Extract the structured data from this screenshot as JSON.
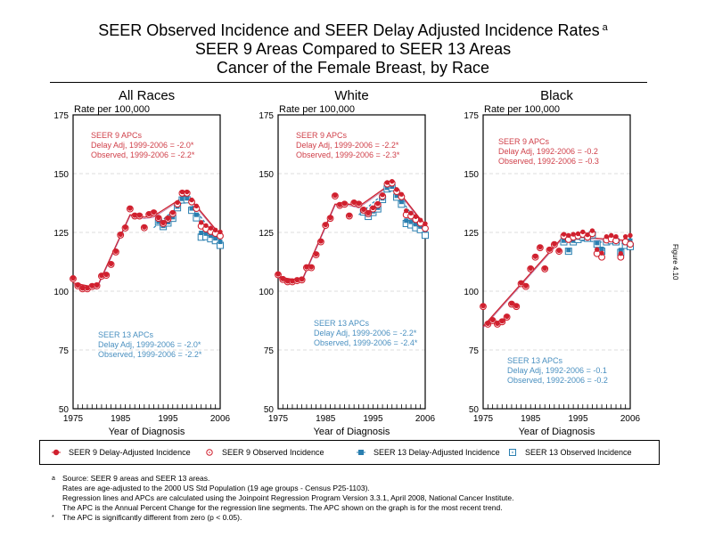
{
  "title": {
    "line1": "SEER Observed Incidence and SEER Delay Adjusted Incidence Rates",
    "superscript": "a",
    "line2": "SEER 9 Areas Compared to SEER 13 Areas",
    "line3": "Cancer of the Female Breast, by Race"
  },
  "figure_label": "Figure 4.10",
  "legend": [
    {
      "name": "SEER 9 Delay-Adjusted Incidence",
      "marker": "filled-circle",
      "color": "#d0202e"
    },
    {
      "name": "SEER 9 Observed Incidence",
      "marker": "open-circle",
      "color": "#d0202e"
    },
    {
      "name": "SEER 13 Delay-Adjusted Incidence",
      "marker": "filled-square",
      "color": "#2a7fb0"
    },
    {
      "name": "SEER 13 Observed Incidence",
      "marker": "open-square",
      "color": "#2a7fb0"
    }
  ],
  "footnotes": [
    {
      "mark": "a",
      "lines": [
        "Source: SEER 9 areas and SEER 13 areas.",
        "Rates are age-adjusted to the 2000 US Std Population (19 age groups - Census P25-1103).",
        "Regression lines and APCs are calculated using the Joinpoint Regression Program Version 3.3.1, April 2008, National Cancer Institute.",
        "The APC is the Annual Percent Change for the regression line segments. The APC shown on the graph is for the most recent trend."
      ]
    },
    {
      "mark": "*",
      "lines": [
        "The APC is significantly different from zero (p < 0.05)."
      ]
    }
  ],
  "colors": {
    "seer9": "#d0202e",
    "seer13": "#2a7fb0",
    "seer9_text": "#d0404a",
    "seer13_text": "#4a90c0"
  },
  "chart_data": [
    {
      "type": "scatter",
      "title": "All Races",
      "xlabel": "Year of Diagnosis",
      "ylabel": "Rate per 100,000",
      "xlim": [
        1975,
        2006
      ],
      "ylim": [
        50,
        175
      ],
      "xticks": [
        1975,
        1985,
        1995,
        2006
      ],
      "yticks": [
        50,
        75,
        100,
        125,
        150,
        175
      ],
      "grid": "horizontal-dashed",
      "seer9_apc": {
        "heading": "SEER 9 APCs",
        "delay": "Delay Adj, 1999-2006 = -2.0*",
        "observed": "Observed, 1999-2006 = -2.2*"
      },
      "seer13_apc": {
        "heading": "SEER 13 APCs",
        "delay": "Delay Adj, 1999-2006 = -2.0*",
        "observed": "Observed, 1999-2006 = -2.2*"
      },
      "x": [
        1975,
        1976,
        1977,
        1978,
        1979,
        1980,
        1981,
        1982,
        1983,
        1984,
        1985,
        1986,
        1987,
        1988,
        1989,
        1990,
        1991,
        1992,
        1993,
        1994,
        1995,
        1996,
        1997,
        1998,
        1999,
        2000,
        2001,
        2002,
        2003,
        2004,
        2005,
        2006
      ],
      "series": [
        {
          "name": "SEER 9 Delay-Adjusted Incidence",
          "values": [
            105.3,
            102.3,
            101.0,
            101.0,
            102.0,
            102.3,
            106.4,
            106.8,
            111.4,
            116.7,
            123.9,
            126.9,
            135.0,
            132.0,
            132.0,
            127.0,
            132.6,
            133.3,
            131.0,
            128.8,
            130.7,
            133.2,
            137.5,
            142.0,
            142.0,
            138.6,
            136.0,
            129.0,
            127.7,
            126.6,
            125.8,
            125.0
          ]
        },
        {
          "name": "SEER 9 Observed Incidence",
          "values": [
            105.3,
            102.3,
            101.0,
            101.0,
            102.0,
            102.3,
            106.4,
            106.8,
            111.4,
            116.7,
            123.9,
            126.9,
            135.0,
            132.0,
            132.0,
            127.0,
            132.6,
            133.3,
            131.0,
            128.8,
            130.7,
            133.0,
            137.1,
            141.7,
            141.7,
            138.0,
            135.2,
            127.7,
            126.5,
            125.4,
            124.6,
            123.5
          ]
        },
        {
          "name": "SEER 13 Delay-Adjusted Incidence",
          "values": [
            null,
            null,
            null,
            null,
            null,
            null,
            null,
            null,
            null,
            null,
            null,
            null,
            null,
            null,
            null,
            null,
            null,
            null,
            129.5,
            127.8,
            129.4,
            131.5,
            136.0,
            139.3,
            139.5,
            135.2,
            132.5,
            124.8,
            124.5,
            123.6,
            122.5,
            121.0
          ]
        },
        {
          "name": "SEER 13 Observed Incidence",
          "values": [
            null,
            null,
            null,
            null,
            null,
            null,
            null,
            null,
            null,
            null,
            null,
            null,
            null,
            null,
            null,
            null,
            null,
            null,
            129.4,
            127.5,
            129.0,
            131.0,
            135.5,
            138.8,
            138.9,
            134.4,
            131.2,
            123.0,
            123.2,
            122.3,
            121.5,
            119.5
          ]
        }
      ],
      "joinpoint_seer9": [
        [
          1975,
          103.5
        ],
        [
          1980,
          101.5
        ],
        [
          1987,
          132.5
        ],
        [
          1990,
          131.5
        ],
        [
          1992,
          132.0
        ],
        [
          1999,
          141.0
        ],
        [
          2006,
          124.0
        ]
      ],
      "joinpoint_seer13": [
        [
          1992,
          127.0
        ],
        [
          1999,
          139.5
        ],
        [
          2006,
          120.5
        ]
      ]
    },
    {
      "type": "scatter",
      "title": "White",
      "xlabel": "Year of Diagnosis",
      "ylabel": "Rate per 100,000",
      "xlim": [
        1975,
        2006
      ],
      "ylim": [
        50,
        175
      ],
      "xticks": [
        1975,
        1985,
        1995,
        2006
      ],
      "yticks": [
        50,
        75,
        100,
        125,
        150,
        175
      ],
      "grid": "horizontal-dashed",
      "seer9_apc": {
        "heading": "SEER 9 APCs",
        "delay": "Delay Adj, 1999-2006 = -2.2*",
        "observed": "Observed, 1999-2006 = -2.3*"
      },
      "seer13_apc": {
        "heading": "SEER 13 APCs",
        "delay": "Delay Adj, 1999-2006 = -2.2*",
        "observed": "Observed, 1999-2006 = -2.4*"
      },
      "x": [
        1975,
        1976,
        1977,
        1978,
        1979,
        1980,
        1981,
        1982,
        1983,
        1984,
        1985,
        1986,
        1987,
        1988,
        1989,
        1990,
        1991,
        1992,
        1993,
        1994,
        1995,
        1996,
        1997,
        1998,
        1999,
        2000,
        2001,
        2002,
        2003,
        2004,
        2005,
        2006
      ],
      "series": [
        {
          "name": "SEER 9 Delay-Adjusted Incidence",
          "values": [
            107.0,
            105.0,
            104.0,
            104.0,
            104.5,
            104.8,
            110.0,
            110.0,
            115.5,
            121.0,
            128.0,
            131.0,
            140.5,
            136.5,
            137.0,
            132.0,
            137.5,
            137.0,
            134.5,
            133.0,
            135.2,
            137.0,
            140.8,
            146.0,
            146.5,
            143.0,
            141.0,
            134.0,
            133.0,
            131.5,
            130.0,
            128.5
          ]
        },
        {
          "name": "SEER 9 Observed Incidence",
          "values": [
            107.0,
            105.0,
            104.0,
            104.0,
            104.5,
            104.8,
            110.0,
            110.0,
            115.5,
            121.0,
            128.0,
            131.0,
            140.5,
            136.5,
            137.0,
            132.0,
            137.5,
            137.0,
            134.5,
            133.0,
            135.0,
            136.8,
            140.4,
            145.6,
            146.0,
            142.4,
            140.2,
            132.5,
            132.0,
            130.5,
            129.0,
            126.7
          ]
        },
        {
          "name": "SEER 13 Delay-Adjusted Incidence",
          "values": [
            null,
            null,
            null,
            null,
            null,
            null,
            null,
            null,
            null,
            null,
            null,
            null,
            null,
            null,
            null,
            null,
            null,
            null,
            134.0,
            132.5,
            134.0,
            135.5,
            139.5,
            144.0,
            144.5,
            140.6,
            138.0,
            130.0,
            129.5,
            128.5,
            127.5,
            125.8
          ]
        },
        {
          "name": "SEER 13 Observed Incidence",
          "values": [
            null,
            null,
            null,
            null,
            null,
            null,
            null,
            null,
            null,
            null,
            null,
            null,
            null,
            null,
            null,
            null,
            null,
            null,
            133.7,
            131.8,
            133.5,
            135.0,
            139.0,
            143.5,
            144.0,
            140.0,
            137.0,
            128.8,
            128.2,
            127.0,
            126.2,
            123.8
          ]
        }
      ],
      "joinpoint_seer9": [
        [
          1975,
          106.0
        ],
        [
          1980,
          104.5
        ],
        [
          1987,
          137.0
        ],
        [
          1990,
          137.0
        ],
        [
          1992,
          136.0
        ],
        [
          1999,
          146.0
        ],
        [
          2006,
          128.0
        ]
      ],
      "joinpoint_seer13": [
        [
          1992,
          132.5
        ],
        [
          1999,
          144.5
        ],
        [
          2006,
          124.5
        ]
      ]
    },
    {
      "type": "scatter",
      "title": "Black",
      "xlabel": "Year of Diagnosis",
      "ylabel": "Rate per 100,000",
      "xlim": [
        1975,
        2006
      ],
      "ylim": [
        50,
        175
      ],
      "xticks": [
        1975,
        1985,
        1995,
        2006
      ],
      "yticks": [
        50,
        75,
        100,
        125,
        150,
        175
      ],
      "grid": "horizontal-dashed",
      "seer9_apc": {
        "heading": "SEER 9 APCs",
        "delay": "Delay Adj, 1992-2006 = -0.2",
        "observed": "Observed, 1992-2006 = -0.3"
      },
      "seer13_apc": {
        "heading": "SEER 13 APCs",
        "delay": "Delay Adj, 1992-2006 = -0.1",
        "observed": "Observed, 1992-2006 = -0.2"
      },
      "x": [
        1975,
        1976,
        1977,
        1978,
        1979,
        1980,
        1981,
        1982,
        1983,
        1984,
        1985,
        1986,
        1987,
        1988,
        1989,
        1990,
        1991,
        1992,
        1993,
        1994,
        1995,
        1996,
        1997,
        1998,
        1999,
        2000,
        2001,
        2002,
        2003,
        2004,
        2005,
        2006
      ],
      "series": [
        {
          "name": "SEER 9 Delay-Adjusted Incidence",
          "values": [
            93.5,
            86.0,
            87.5,
            86.0,
            87.0,
            89.0,
            94.5,
            93.5,
            103.2,
            102.0,
            109.5,
            114.5,
            118.5,
            109.5,
            117.5,
            119.8,
            117.0,
            124.0,
            123.5,
            124.0,
            124.2,
            125.0,
            123.8,
            125.5,
            117.5,
            116.0,
            123.0,
            123.5,
            123.0,
            115.8,
            123.0,
            123.5
          ]
        },
        {
          "name": "SEER 9 Observed Incidence",
          "values": [
            93.5,
            86.0,
            87.5,
            86.0,
            87.0,
            89.0,
            94.5,
            93.5,
            103.2,
            102.0,
            109.5,
            114.5,
            118.5,
            109.5,
            117.5,
            119.8,
            117.0,
            123.5,
            122.0,
            123.0,
            123.5,
            124.2,
            123.0,
            124.5,
            116.0,
            114.5,
            121.8,
            122.2,
            121.5,
            114.5,
            121.0,
            120.0
          ]
        },
        {
          "name": "SEER 13 Delay-Adjusted Incidence",
          "values": [
            null,
            null,
            null,
            null,
            null,
            null,
            null,
            null,
            null,
            null,
            null,
            null,
            null,
            null,
            null,
            null,
            null,
            121.5,
            117.5,
            121.5,
            122.8,
            123.5,
            123.0,
            124.5,
            120.5,
            118.0,
            122.0,
            122.5,
            122.0,
            117.5,
            120.5,
            121.5
          ]
        },
        {
          "name": "SEER 13 Observed Incidence",
          "values": [
            null,
            null,
            null,
            null,
            null,
            null,
            null,
            null,
            null,
            null,
            null,
            null,
            null,
            null,
            null,
            null,
            null,
            121.0,
            117.0,
            121.0,
            122.0,
            123.0,
            122.5,
            124.0,
            120.0,
            117.0,
            121.0,
            121.5,
            121.0,
            116.5,
            119.5,
            119.0
          ]
        }
      ],
      "joinpoint_seer9": [
        [
          1975,
          85.0
        ],
        [
          1992,
          123.5
        ],
        [
          2006,
          121.5
        ]
      ],
      "joinpoint_seer13": [
        [
          1992,
          122.0
        ],
        [
          2006,
          120.0
        ]
      ]
    }
  ]
}
